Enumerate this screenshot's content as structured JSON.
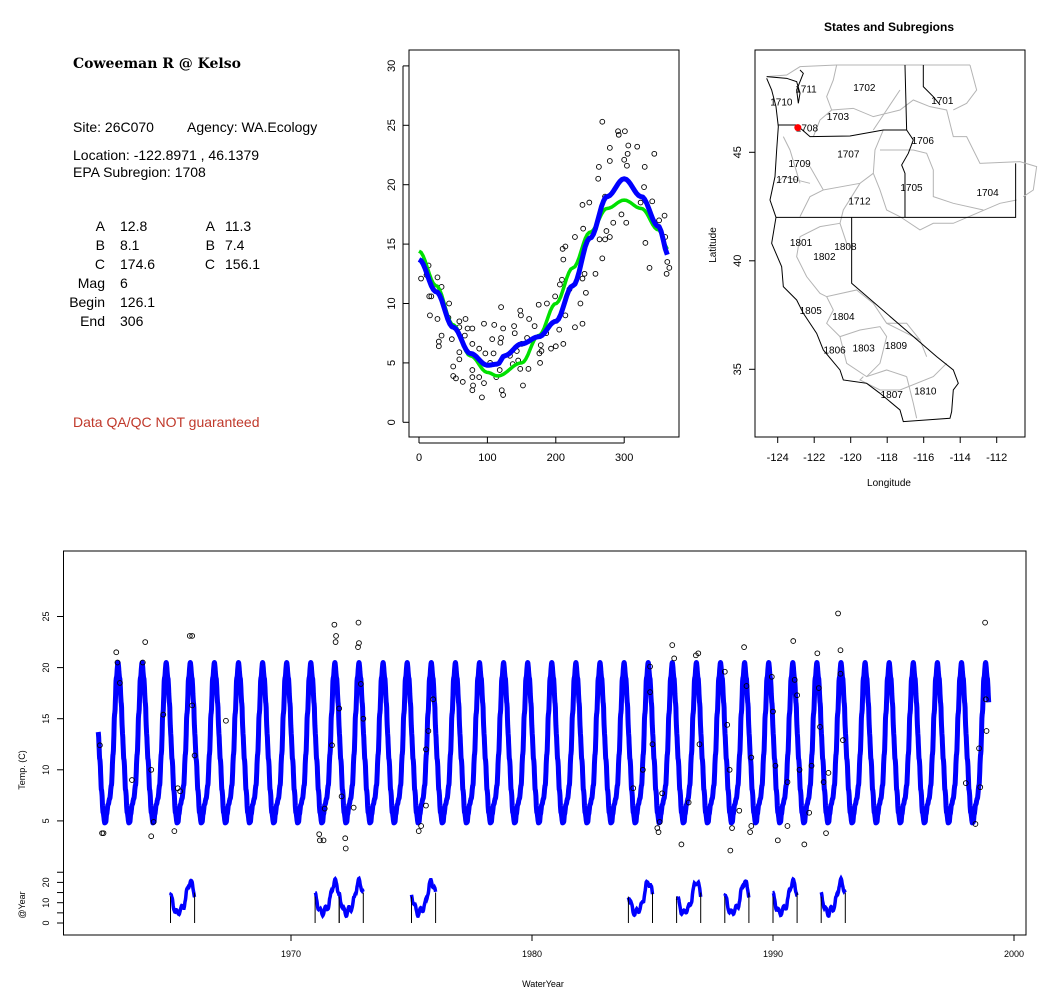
{
  "info": {
    "title": "Coweeman R @ Kelso",
    "site": "Site: 26C070",
    "agency": "Agency: WA.Ecology",
    "location": "Location: -122.8971 , 46.1379",
    "subregion": "EPA Subregion: 1708",
    "params": [
      {
        "label": "A",
        "value": "12.8",
        "label2": "A",
        "value2": "11.3"
      },
      {
        "label": "B",
        "value": "8.1",
        "label2": "B",
        "value2": "7.4"
      },
      {
        "label": "C",
        "value": "174.6",
        "label2": "C",
        "value2": "156.1"
      },
      {
        "label": "Mag",
        "value": "6"
      },
      {
        "label": "Begin",
        "value": "126.1"
      },
      {
        "label": "End",
        "value": "306"
      }
    ],
    "qa_note": "Data QA/QC NOT guaranteed"
  },
  "colors": {
    "fit_blue": "#0000ff",
    "fit_green": "#00e000",
    "site_marker": "#ff0000",
    "qa_text": "#c0392b",
    "region_lines": "#b4b4b4"
  },
  "chart_data": [
    {
      "type": "scatter",
      "title": "",
      "xlabel": "",
      "ylabel": "",
      "xlim": [
        0,
        366
      ],
      "ylim": [
        0,
        30
      ],
      "xticks": [
        0,
        100,
        200,
        300
      ],
      "yticks": [
        0,
        5,
        10,
        15,
        20,
        25,
        30
      ],
      "points": [
        [
          3,
          12.1
        ],
        [
          14,
          13.2
        ],
        [
          11,
          12.4
        ],
        [
          15,
          10.6
        ],
        [
          18,
          10.6
        ],
        [
          16,
          9.0
        ],
        [
          27,
          12.2
        ],
        [
          27,
          8.7
        ],
        [
          29,
          6.8
        ],
        [
          29,
          6.4
        ],
        [
          33,
          11.4
        ],
        [
          33,
          7.3
        ],
        [
          44,
          10
        ],
        [
          43,
          8.8
        ],
        [
          48,
          7.0
        ],
        [
          50,
          4.7
        ],
        [
          50,
          3.9
        ],
        [
          54,
          3.7
        ],
        [
          59,
          8.5
        ],
        [
          59,
          8.0
        ],
        [
          59,
          5.9
        ],
        [
          59,
          5.3
        ],
        [
          64,
          3.4
        ],
        [
          68,
          8.7
        ],
        [
          67,
          7.3
        ],
        [
          71,
          7.9
        ],
        [
          78,
          7.9
        ],
        [
          78,
          6.6
        ],
        [
          78,
          4.4
        ],
        [
          78,
          3.8
        ],
        [
          78,
          2.7
        ],
        [
          79,
          3.1
        ],
        [
          88,
          3.8
        ],
        [
          88,
          6.2
        ],
        [
          92,
          2.1
        ],
        [
          95,
          3.3
        ],
        [
          95,
          8.3
        ],
        [
          97,
          5.8
        ],
        [
          104,
          5.0
        ],
        [
          107,
          7.0
        ],
        [
          109,
          5.8
        ],
        [
          110,
          8.2
        ],
        [
          113,
          3.8
        ],
        [
          118,
          4.4
        ],
        [
          120,
          9.7
        ],
        [
          119,
          6.7
        ],
        [
          120,
          7.1
        ],
        [
          121,
          2.7
        ],
        [
          123,
          2.3
        ],
        [
          123,
          7.9
        ],
        [
          133,
          5.6
        ],
        [
          137,
          4.9
        ],
        [
          139,
          8.1
        ],
        [
          140,
          7.5
        ],
        [
          143,
          6.0
        ],
        [
          145,
          5.2
        ],
        [
          148,
          4.5
        ],
        [
          148,
          9.4
        ],
        [
          149,
          9.0
        ],
        [
          150,
          6.6
        ],
        [
          152,
          3.1
        ],
        [
          160,
          4.5
        ],
        [
          161,
          8.7
        ],
        [
          158,
          7.1
        ],
        [
          169,
          8.1
        ],
        [
          175,
          9.9
        ],
        [
          176,
          5.8
        ],
        [
          177,
          5.0
        ],
        [
          178,
          6.5
        ],
        [
          179,
          6.0
        ],
        [
          187,
          10.0
        ],
        [
          186,
          7.5
        ],
        [
          193,
          6.2
        ],
        [
          199,
          10.6
        ],
        [
          200,
          6.4
        ],
        [
          205,
          7.8
        ],
        [
          206,
          11.6
        ],
        [
          209,
          12.0
        ],
        [
          210,
          14.6
        ],
        [
          211,
          13.7
        ],
        [
          211,
          6.6
        ],
        [
          214,
          14.8
        ],
        [
          214,
          9.0
        ],
        [
          220,
          11.2
        ],
        [
          228,
          15.6
        ],
        [
          228,
          8.0
        ],
        [
          236,
          10.0
        ],
        [
          239,
          12.1
        ],
        [
          239,
          18.3
        ],
        [
          240,
          16.3
        ],
        [
          239,
          8.3
        ],
        [
          242,
          12.5
        ],
        [
          244,
          10.9
        ],
        [
          249,
          18.5
        ],
        [
          258,
          12.5
        ],
        [
          262,
          20.5
        ],
        [
          263,
          21.5
        ],
        [
          264,
          15.4
        ],
        [
          268,
          25.3
        ],
        [
          268,
          13.8
        ],
        [
          272,
          19.0
        ],
        [
          272,
          15.4
        ],
        [
          274,
          16.1
        ],
        [
          279,
          23.1
        ],
        [
          279,
          22.0
        ],
        [
          279,
          15.6
        ],
        [
          284,
          16.8
        ],
        [
          291,
          24.5
        ],
        [
          292,
          24.2
        ],
        [
          296,
          17.5
        ],
        [
          300,
          22.1
        ],
        [
          301,
          24.5
        ],
        [
          303,
          16.8
        ],
        [
          304,
          21.6
        ],
        [
          305,
          22.6
        ],
        [
          306,
          23.3
        ],
        [
          319,
          23.2
        ],
        [
          324,
          18.5
        ],
        [
          330,
          21.5
        ],
        [
          331,
          15.1
        ],
        [
          329,
          19.8
        ],
        [
          337,
          13.0
        ],
        [
          341,
          18.6
        ],
        [
          344,
          22.6
        ],
        [
          351,
          17.0
        ],
        [
          359,
          17.4
        ],
        [
          362,
          12.5
        ],
        [
          363,
          13.5
        ],
        [
          366,
          13.0
        ],
        [
          360,
          15.6
        ]
      ],
      "series": [
        {
          "name": "blue fit",
          "color": "#0000ff",
          "x": [
            0,
            25,
            50,
            75,
            100,
            115,
            125,
            150,
            175,
            200,
            225,
            250,
            275,
            300,
            325,
            350,
            365
          ],
          "y": [
            13.7,
            11,
            8,
            5.8,
            4.8,
            4.9,
            5.6,
            6.6,
            7.2,
            8.5,
            11.5,
            15.5,
            19,
            20.5,
            19,
            16.5,
            14
          ]
        },
        {
          "name": "green fit",
          "color": "#00e000",
          "x": [
            0,
            25,
            50,
            75,
            100,
            115,
            150,
            175,
            200,
            225,
            250,
            275,
            300,
            325,
            350,
            365
          ],
          "y": [
            14.4,
            11.5,
            8.2,
            5.6,
            4.2,
            3.9,
            5,
            7.3,
            10,
            13,
            16,
            18,
            18.7,
            18,
            16.2,
            14.5
          ]
        }
      ]
    },
    {
      "type": "map",
      "title": "States and Subregions",
      "xlabel": "Longitude",
      "ylabel": "Latitude",
      "xticks": [
        -124,
        -122,
        -120,
        -118,
        -116,
        -114,
        -112
      ],
      "yticks": [
        35,
        40,
        45
      ],
      "site": {
        "lon": -122.8971,
        "lat": 46.1379
      },
      "regions": [
        {
          "label": "1702",
          "lon": -119.25,
          "lat": 48.0
        },
        {
          "label": "1711",
          "lon": -122.45,
          "lat": 47.93
        },
        {
          "label": "1701",
          "lon": -114.98,
          "lat": 47.4
        },
        {
          "label": "1710",
          "lon": -123.8,
          "lat": 47.33
        },
        {
          "label": "1703",
          "lon": -120.7,
          "lat": 46.67
        },
        {
          "label": "1708",
          "lon": -122.4,
          "lat": 46.15
        },
        {
          "label": "1706",
          "lon": -116.05,
          "lat": 45.57
        },
        {
          "label": "1707",
          "lon": -120.13,
          "lat": 44.95
        },
        {
          "label": "1709",
          "lon": -122.8,
          "lat": 44.5
        },
        {
          "label": "1710",
          "lon": -123.47,
          "lat": 43.76
        },
        {
          "label": "1705",
          "lon": -116.67,
          "lat": 43.4
        },
        {
          "label": "1704",
          "lon": -112.5,
          "lat": 43.16
        },
        {
          "label": "1712",
          "lon": -119.52,
          "lat": 42.79
        },
        {
          "label": "1801",
          "lon": -122.72,
          "lat": 40.87
        },
        {
          "label": "1808",
          "lon": -120.29,
          "lat": 40.68
        },
        {
          "label": "1802",
          "lon": -121.44,
          "lat": 40.21
        },
        {
          "label": "1805",
          "lon": -122.19,
          "lat": 37.73
        },
        {
          "label": "1804",
          "lon": -120.4,
          "lat": 37.46
        },
        {
          "label": "1806",
          "lon": -120.88,
          "lat": 35.92
        },
        {
          "label": "1803",
          "lon": -119.29,
          "lat": 36.01
        },
        {
          "label": "1809",
          "lon": -117.52,
          "lat": 36.12
        },
        {
          "label": "1810",
          "lon": -115.91,
          "lat": 34.02
        },
        {
          "label": "1807",
          "lon": -117.75,
          "lat": 33.86
        }
      ]
    },
    {
      "type": "line",
      "title": "",
      "xlabel": "WaterYear",
      "ylabel": "Temp. (C)",
      "ylabel2": "@Year",
      "xlim": [
        1960.5,
        2000.5
      ],
      "xticks": [
        1970,
        1980,
        1990,
        2000
      ],
      "yticks": [
        5,
        10,
        15,
        20,
        25
      ],
      "yticks2": [
        0,
        10,
        20
      ],
      "fit_range": [
        1962,
        1998.95
      ],
      "fit_series": "blue fit",
      "outliers": [
        [
          1962.07,
          12.4
        ],
        [
          1962.16,
          3.8
        ],
        [
          1962.22,
          3.8
        ],
        [
          1962.75,
          21.5
        ],
        [
          1962.8,
          20.5
        ],
        [
          1962.9,
          18.5
        ],
        [
          1963.4,
          9
        ],
        [
          1963.85,
          20.5
        ],
        [
          1963.95,
          22.5
        ],
        [
          1964.2,
          3.5
        ],
        [
          1964.2,
          10
        ],
        [
          1964.3,
          4.9
        ],
        [
          1964.7,
          15.4
        ],
        [
          1965.16,
          4.0
        ],
        [
          1965.3,
          8.2
        ],
        [
          1965.4,
          7.9
        ],
        [
          1965.8,
          23.1
        ],
        [
          1965.9,
          23.1
        ],
        [
          1965.9,
          16.3
        ],
        [
          1966,
          11.4
        ],
        [
          1967.3,
          14.8
        ],
        [
          1971.17,
          3.7
        ],
        [
          1971.2,
          3.1
        ],
        [
          1971.35,
          3.1
        ],
        [
          1971.4,
          6.2
        ],
        [
          1971.7,
          12.4
        ],
        [
          1971.8,
          24.2
        ],
        [
          1971.87,
          23.1
        ],
        [
          1971.85,
          22.5
        ],
        [
          1972.0,
          16
        ],
        [
          1972.1,
          7.4
        ],
        [
          1972.25,
          3.3
        ],
        [
          1972.27,
          2.3
        ],
        [
          1972.6,
          6.3
        ],
        [
          1972.8,
          24.4
        ],
        [
          1972.82,
          22.4
        ],
        [
          1972.78,
          22.0
        ],
        [
          1972.9,
          18.4
        ],
        [
          1973.0,
          15
        ],
        [
          1975.3,
          4
        ],
        [
          1975.4,
          4.5
        ],
        [
          1975.6,
          12
        ],
        [
          1975.6,
          6.5
        ],
        [
          1975.7,
          13.8
        ],
        [
          1975.9,
          16.9
        ],
        [
          1984.2,
          8.2
        ],
        [
          1984.6,
          10.0
        ],
        [
          1984.9,
          20.1
        ],
        [
          1984.9,
          17.6
        ],
        [
          1985.0,
          12.5
        ],
        [
          1985.2,
          4.3
        ],
        [
          1985.25,
          3.9
        ],
        [
          1985.3,
          4.9
        ],
        [
          1985.4,
          7.7
        ],
        [
          1985.82,
          22.2
        ],
        [
          1985.9,
          20.9
        ],
        [
          1986.2,
          2.7
        ],
        [
          1986.5,
          6.8
        ],
        [
          1986.8,
          21.2
        ],
        [
          1986.9,
          21.4
        ],
        [
          1986.95,
          12.5
        ],
        [
          1988.0,
          19.6
        ],
        [
          1988.1,
          14.4
        ],
        [
          1988.2,
          10.0
        ],
        [
          1988.23,
          2.1
        ],
        [
          1988.3,
          4.3
        ],
        [
          1988.6,
          6.0
        ],
        [
          1988.8,
          22.0
        ],
        [
          1988.9,
          18.2
        ],
        [
          1989.05,
          3.9
        ],
        [
          1989.1,
          4.5
        ],
        [
          1989.1,
          11.2
        ],
        [
          1989.95,
          19.1
        ],
        [
          1990.0,
          15.7
        ],
        [
          1990.1,
          10.4
        ],
        [
          1990.2,
          3.1
        ],
        [
          1990.6,
          4.5
        ],
        [
          1990.6,
          8.8
        ],
        [
          1990.84,
          22.6
        ],
        [
          1990.9,
          18.8
        ],
        [
          1991.0,
          17.3
        ],
        [
          1991.1,
          10.0
        ],
        [
          1991.3,
          2.7
        ],
        [
          1991.5,
          5.8
        ],
        [
          1991.6,
          10.4
        ],
        [
          1991.84,
          21.4
        ],
        [
          1991.9,
          18.0
        ],
        [
          1991.95,
          14.2
        ],
        [
          1992.1,
          8.8
        ],
        [
          1992.2,
          3.8
        ],
        [
          1992.3,
          9.7
        ],
        [
          1992.7,
          25.3
        ],
        [
          1992.8,
          21.7
        ],
        [
          1992.8,
          19.4
        ],
        [
          1992.9,
          12.9
        ],
        [
          1998.0,
          8.7
        ],
        [
          1998.4,
          4.7
        ],
        [
          1998.55,
          12.1
        ],
        [
          1998.6,
          8.3
        ],
        [
          1998.8,
          24.4
        ],
        [
          1998.83,
          16.9
        ],
        [
          1998.86,
          13.8
        ]
      ],
      "annual_years": [
        1965,
        1971,
        1972,
        1975,
        1984,
        1986,
        1988,
        1990,
        1992
      ]
    }
  ]
}
